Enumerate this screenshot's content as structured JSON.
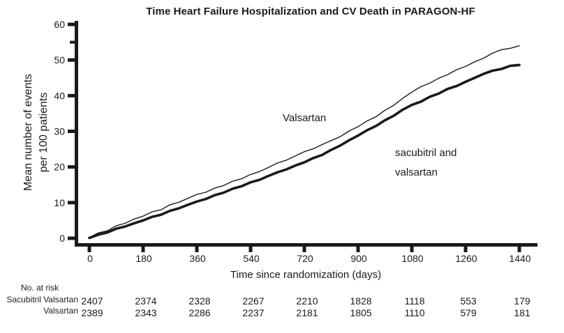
{
  "chart_data": {
    "type": "line",
    "title": "Time Heart Failure Hospitalization and CV Death in PARAGON-HF",
    "ylabel_line1": "Mean number of events",
    "ylabel_line2": "per 100 patients",
    "xlabel": "Time since randomization (days)",
    "xlim": [
      0,
      1440
    ],
    "ylim": [
      0,
      60
    ],
    "x_ticks": [
      "0",
      "180",
      "360",
      "540",
      "720",
      "900",
      "1080",
      "1260",
      "1440"
    ],
    "y_ticks": [
      "0",
      "10",
      "20",
      "30",
      "40",
      "50",
      "60"
    ],
    "y_minor_ticks": [
      55
    ],
    "grid": false,
    "line_color": "#1a1a1a",
    "legend_position": "inline-labels",
    "series": [
      {
        "name": "Valsartan",
        "label": "Valsartan",
        "line_width": 1.4,
        "points": [
          [
            0,
            0.2
          ],
          [
            30,
            1.5
          ],
          [
            60,
            2.1
          ],
          [
            90,
            3.5
          ],
          [
            120,
            4.2
          ],
          [
            150,
            5.4
          ],
          [
            180,
            6.2
          ],
          [
            210,
            7.4
          ],
          [
            240,
            8.0
          ],
          [
            270,
            9.4
          ],
          [
            300,
            10.1
          ],
          [
            330,
            11.2
          ],
          [
            360,
            12.3
          ],
          [
            390,
            12.9
          ],
          [
            420,
            14.1
          ],
          [
            450,
            14.8
          ],
          [
            480,
            16.0
          ],
          [
            510,
            16.7
          ],
          [
            540,
            17.9
          ],
          [
            570,
            18.7
          ],
          [
            600,
            19.9
          ],
          [
            630,
            21.1
          ],
          [
            660,
            21.9
          ],
          [
            690,
            23.1
          ],
          [
            720,
            24.3
          ],
          [
            750,
            25.1
          ],
          [
            780,
            26.3
          ],
          [
            810,
            27.4
          ],
          [
            840,
            28.5
          ],
          [
            870,
            30.1
          ],
          [
            900,
            31.3
          ],
          [
            930,
            32.9
          ],
          [
            960,
            34.1
          ],
          [
            990,
            35.9
          ],
          [
            1020,
            37.3
          ],
          [
            1050,
            39.3
          ],
          [
            1080,
            41.0
          ],
          [
            1110,
            42.5
          ],
          [
            1140,
            43.5
          ],
          [
            1170,
            44.9
          ],
          [
            1200,
            45.9
          ],
          [
            1230,
            47.3
          ],
          [
            1260,
            48.2
          ],
          [
            1290,
            49.5
          ],
          [
            1320,
            50.5
          ],
          [
            1350,
            51.9
          ],
          [
            1380,
            52.9
          ],
          [
            1410,
            53.3
          ],
          [
            1440,
            54.0
          ]
        ]
      },
      {
        "name": "Sacubitril and valsartan",
        "label_line1": "sacubitril and",
        "label_line2": "valsartan",
        "line_width": 3.6,
        "points": [
          [
            0,
            0.1
          ],
          [
            30,
            1.0
          ],
          [
            60,
            1.6
          ],
          [
            90,
            2.7
          ],
          [
            120,
            3.3
          ],
          [
            150,
            4.2
          ],
          [
            180,
            5.0
          ],
          [
            210,
            6.0
          ],
          [
            240,
            6.6
          ],
          [
            270,
            7.7
          ],
          [
            300,
            8.4
          ],
          [
            330,
            9.4
          ],
          [
            360,
            10.3
          ],
          [
            390,
            11.0
          ],
          [
            420,
            12.1
          ],
          [
            450,
            12.8
          ],
          [
            480,
            13.9
          ],
          [
            510,
            14.6
          ],
          [
            540,
            15.7
          ],
          [
            570,
            16.4
          ],
          [
            600,
            17.5
          ],
          [
            630,
            18.5
          ],
          [
            660,
            19.3
          ],
          [
            690,
            20.4
          ],
          [
            720,
            21.3
          ],
          [
            750,
            22.5
          ],
          [
            780,
            23.4
          ],
          [
            810,
            24.8
          ],
          [
            840,
            26.0
          ],
          [
            870,
            27.5
          ],
          [
            900,
            28.8
          ],
          [
            930,
            30.3
          ],
          [
            960,
            31.5
          ],
          [
            990,
            33.1
          ],
          [
            1020,
            34.4
          ],
          [
            1050,
            36.1
          ],
          [
            1080,
            37.4
          ],
          [
            1110,
            38.3
          ],
          [
            1140,
            39.7
          ],
          [
            1170,
            40.6
          ],
          [
            1200,
            41.9
          ],
          [
            1230,
            42.7
          ],
          [
            1260,
            43.9
          ],
          [
            1290,
            45.0
          ],
          [
            1320,
            46.1
          ],
          [
            1350,
            47.0
          ],
          [
            1380,
            47.5
          ],
          [
            1410,
            48.4
          ],
          [
            1440,
            48.6
          ]
        ]
      }
    ],
    "at_risk": {
      "header": "No. at risk",
      "days": [
        "0",
        "180",
        "360",
        "540",
        "720",
        "900",
        "1080",
        "1260",
        "1440"
      ],
      "rows": [
        {
          "label": "Sacubitril Valsartan",
          "values": [
            "2407",
            "2374",
            "2328",
            "2267",
            "2210",
            "1828",
            "1118",
            "553",
            "179"
          ]
        },
        {
          "label": "Valsartan",
          "values": [
            "2389",
            "2343",
            "2286",
            "2237",
            "2181",
            "1805",
            "1110",
            "579",
            "181"
          ]
        }
      ]
    }
  }
}
